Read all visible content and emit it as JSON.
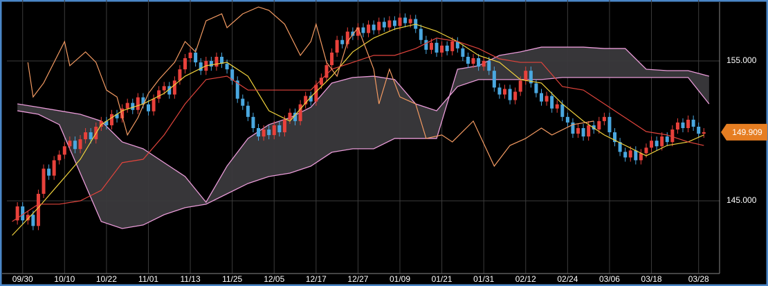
{
  "chart_data": {
    "type": "candlestick",
    "up_color": "#e8413b",
    "down_color": "#4aa8e0",
    "xlim": [
      -2,
      134
    ],
    "xticks": [
      {
        "value": 1,
        "label": "09/30"
      },
      {
        "value": 9,
        "label": "10/10"
      },
      {
        "value": 17,
        "label": "10/22"
      },
      {
        "value": 25,
        "label": "11/01"
      },
      {
        "value": 33,
        "label": "11/13"
      },
      {
        "value": 41,
        "label": "11/25"
      },
      {
        "value": 49,
        "label": "12/05"
      },
      {
        "value": 57,
        "label": "12/17"
      },
      {
        "value": 65,
        "label": "12/27"
      },
      {
        "value": 73,
        "label": "01/09"
      },
      {
        "value": 81,
        "label": "01/21"
      },
      {
        "value": 89,
        "label": "01/31"
      },
      {
        "value": 97,
        "label": "02/12"
      },
      {
        "value": 105,
        "label": "02/24"
      },
      {
        "value": 113,
        "label": "03/06"
      },
      {
        "value": 121,
        "label": "03/18"
      },
      {
        "value": 130,
        "label": "03/28"
      }
    ],
    "ylim": [
      139.8,
      159.36
    ],
    "yticks": [
      {
        "value": 145,
        "label": "145.000"
      },
      {
        "value": 155,
        "label": "155.000"
      }
    ],
    "grid": true,
    "candles": [
      [
        143.6,
        144.9,
        143.3,
        144.6
      ],
      [
        144.6,
        144.9,
        143.3,
        143.6
      ],
      [
        143.6,
        144.3,
        143.3,
        144.0
      ],
      [
        144.0,
        144.3,
        142.9,
        143.2
      ],
      [
        143.2,
        145.8,
        142.9,
        145.5
      ],
      [
        145.5,
        147.6,
        145.2,
        147.3
      ],
      [
        147.3,
        147.6,
        146.5,
        146.8
      ],
      [
        146.8,
        148.2,
        146.5,
        147.9
      ],
      [
        147.9,
        148.6,
        147.6,
        148.3
      ],
      [
        148.3,
        149.2,
        148.0,
        148.9
      ],
      [
        148.9,
        149.6,
        148.6,
        149.3
      ],
      [
        149.3,
        149.6,
        148.4,
        148.7
      ],
      [
        148.7,
        149.7,
        148.4,
        149.4
      ],
      [
        149.4,
        150.2,
        149.1,
        149.9
      ],
      [
        149.9,
        150.2,
        149.1,
        149.4
      ],
      [
        149.4,
        150.6,
        149.1,
        150.3
      ],
      [
        150.3,
        151.0,
        150.0,
        150.7
      ],
      [
        150.7,
        151.0,
        150.1,
        150.4
      ],
      [
        150.4,
        151.5,
        150.1,
        151.2
      ],
      [
        151.2,
        151.5,
        150.6,
        150.9
      ],
      [
        150.9,
        151.9,
        150.6,
        151.6
      ],
      [
        151.6,
        152.3,
        151.3,
        152.0
      ],
      [
        152.0,
        152.3,
        151.2,
        151.5
      ],
      [
        151.5,
        152.7,
        151.2,
        152.4
      ],
      [
        152.4,
        152.7,
        151.6,
        151.9
      ],
      [
        151.9,
        152.2,
        151.1,
        151.4
      ],
      [
        151.4,
        152.6,
        151.1,
        152.3
      ],
      [
        152.3,
        153.2,
        152.0,
        152.9
      ],
      [
        152.9,
        153.5,
        152.6,
        153.2
      ],
      [
        153.2,
        153.5,
        152.3,
        152.6
      ],
      [
        152.6,
        153.9,
        152.3,
        153.6
      ],
      [
        153.6,
        154.7,
        153.3,
        154.4
      ],
      [
        154.4,
        155.5,
        154.1,
        155.2
      ],
      [
        155.2,
        155.9,
        154.9,
        155.6
      ],
      [
        155.6,
        155.9,
        154.6,
        154.9
      ],
      [
        154.9,
        155.2,
        154.0,
        154.3
      ],
      [
        154.3,
        155.3,
        154.0,
        155.0
      ],
      [
        155.0,
        155.3,
        154.3,
        154.6
      ],
      [
        154.6,
        155.6,
        154.3,
        155.3
      ],
      [
        155.3,
        155.6,
        154.5,
        154.8
      ],
      [
        154.8,
        155.1,
        154.1,
        154.4
      ],
      [
        154.4,
        154.7,
        153.3,
        153.6
      ],
      [
        153.6,
        153.9,
        152.0,
        152.3
      ],
      [
        152.3,
        152.6,
        151.5,
        151.8
      ],
      [
        151.8,
        152.1,
        150.7,
        151.0
      ],
      [
        151.0,
        151.3,
        149.9,
        150.2
      ],
      [
        150.2,
        150.5,
        149.3,
        149.6
      ],
      [
        149.6,
        150.4,
        149.3,
        150.1
      ],
      [
        150.1,
        150.4,
        149.4,
        149.7
      ],
      [
        149.7,
        150.7,
        149.4,
        150.4
      ],
      [
        150.4,
        150.7,
        149.6,
        149.9
      ],
      [
        149.9,
        151.1,
        149.6,
        150.8
      ],
      [
        150.8,
        151.6,
        150.5,
        151.3
      ],
      [
        151.3,
        151.6,
        150.4,
        150.7
      ],
      [
        150.7,
        152.2,
        150.4,
        151.9
      ],
      [
        151.9,
        152.8,
        151.6,
        152.5
      ],
      [
        152.5,
        152.8,
        151.8,
        152.1
      ],
      [
        152.1,
        153.6,
        151.8,
        153.3
      ],
      [
        153.3,
        154.1,
        153.0,
        153.8
      ],
      [
        153.8,
        155.0,
        153.5,
        154.7
      ],
      [
        154.7,
        155.9,
        154.4,
        155.6
      ],
      [
        155.6,
        156.8,
        155.3,
        156.5
      ],
      [
        156.5,
        156.8,
        155.9,
        156.2
      ],
      [
        156.2,
        157.4,
        155.9,
        157.1
      ],
      [
        157.1,
        157.4,
        156.5,
        156.8
      ],
      [
        156.8,
        157.7,
        156.5,
        157.4
      ],
      [
        157.4,
        157.7,
        156.7,
        157.0
      ],
      [
        157.0,
        157.9,
        156.7,
        157.6
      ],
      [
        157.6,
        157.9,
        156.9,
        157.2
      ],
      [
        157.2,
        158.1,
        156.9,
        157.8
      ],
      [
        157.8,
        158.1,
        157.1,
        157.4
      ],
      [
        157.4,
        158.2,
        157.1,
        157.9
      ],
      [
        157.9,
        158.2,
        157.2,
        157.5
      ],
      [
        157.5,
        158.4,
        157.2,
        158.1
      ],
      [
        158.1,
        158.4,
        157.4,
        157.7
      ],
      [
        157.7,
        158.3,
        157.4,
        158.0
      ],
      [
        158.0,
        158.3,
        157.0,
        157.3
      ],
      [
        157.3,
        157.6,
        156.2,
        156.5
      ],
      [
        156.5,
        156.8,
        155.5,
        155.8
      ],
      [
        155.8,
        156.6,
        155.5,
        156.3
      ],
      [
        156.3,
        156.6,
        155.3,
        155.6
      ],
      [
        155.6,
        156.4,
        155.3,
        156.1
      ],
      [
        156.1,
        156.4,
        155.4,
        155.7
      ],
      [
        155.7,
        156.7,
        155.4,
        156.4
      ],
      [
        156.4,
        156.7,
        155.6,
        155.9
      ],
      [
        155.9,
        156.2,
        155.0,
        155.3
      ],
      [
        155.3,
        155.6,
        154.5,
        154.8
      ],
      [
        154.8,
        155.5,
        154.5,
        155.2
      ],
      [
        155.2,
        155.5,
        154.3,
        154.6
      ],
      [
        154.6,
        155.3,
        154.3,
        155.0
      ],
      [
        155.0,
        155.3,
        154.0,
        154.3
      ],
      [
        154.3,
        154.6,
        152.8,
        153.1
      ],
      [
        153.1,
        153.4,
        152.3,
        152.6
      ],
      [
        152.6,
        153.3,
        152.3,
        153.0
      ],
      [
        153.0,
        153.3,
        151.9,
        152.2
      ],
      [
        152.2,
        153.1,
        151.9,
        152.8
      ],
      [
        152.8,
        153.9,
        152.5,
        153.6
      ],
      [
        153.6,
        154.6,
        153.3,
        154.3
      ],
      [
        154.3,
        154.6,
        153.1,
        153.4
      ],
      [
        153.4,
        153.7,
        152.4,
        152.7
      ],
      [
        152.7,
        153.0,
        151.8,
        152.1
      ],
      [
        152.1,
        152.8,
        151.8,
        152.5
      ],
      [
        152.5,
        152.8,
        151.3,
        151.6
      ],
      [
        151.6,
        152.2,
        151.3,
        151.9
      ],
      [
        151.9,
        152.2,
        150.7,
        151.0
      ],
      [
        151.0,
        151.3,
        150.3,
        150.6
      ],
      [
        150.6,
        150.9,
        149.5,
        149.8
      ],
      [
        149.8,
        150.5,
        149.5,
        150.2
      ],
      [
        150.2,
        150.5,
        149.3,
        149.6
      ],
      [
        149.6,
        150.7,
        149.3,
        150.4
      ],
      [
        150.4,
        150.7,
        149.8,
        150.1
      ],
      [
        150.1,
        151.0,
        149.8,
        150.7
      ],
      [
        150.7,
        151.3,
        150.4,
        151.0
      ],
      [
        151.0,
        151.3,
        149.6,
        149.9
      ],
      [
        149.9,
        150.2,
        148.9,
        149.2
      ],
      [
        149.2,
        149.5,
        148.2,
        148.5
      ],
      [
        148.5,
        148.8,
        147.8,
        148.1
      ],
      [
        148.1,
        148.9,
        147.8,
        148.6
      ],
      [
        148.6,
        148.9,
        147.6,
        147.9
      ],
      [
        147.9,
        148.7,
        147.6,
        148.4
      ],
      [
        148.4,
        149.1,
        148.1,
        148.8
      ],
      [
        148.8,
        149.6,
        148.5,
        149.3
      ],
      [
        149.3,
        149.6,
        148.6,
        148.9
      ],
      [
        148.9,
        149.9,
        148.6,
        149.6
      ],
      [
        149.6,
        149.9,
        148.9,
        149.2
      ],
      [
        149.2,
        150.4,
        148.9,
        150.1
      ],
      [
        150.1,
        150.9,
        149.8,
        150.6
      ],
      [
        150.6,
        150.9,
        149.9,
        150.2
      ],
      [
        150.2,
        151.1,
        149.9,
        150.8
      ],
      [
        150.8,
        151.1,
        150.0,
        150.3
      ],
      [
        150.3,
        150.6,
        149.5,
        149.8
      ],
      [
        149.8,
        150.2,
        149.5,
        149.909
      ]
    ],
    "cloud": {
      "line_color": "#e99bd8",
      "fill": "#3a393c",
      "x": [
        0,
        4,
        8,
        12,
        16,
        20,
        24,
        28,
        32,
        36,
        40,
        44,
        48,
        52,
        56,
        60,
        64,
        68,
        72,
        76,
        80,
        84,
        88,
        92,
        96,
        100,
        104,
        108,
        112,
        116,
        120,
        124,
        128,
        132
      ],
      "span_a": [
        151.93,
        151.69,
        151.44,
        151.19,
        150.7,
        149.21,
        148.72,
        147.73,
        146.74,
        144.9,
        147.48,
        149.46,
        150.45,
        150.94,
        151.69,
        153.42,
        153.82,
        153.91,
        153.67,
        151.93,
        151.44,
        153.17,
        153.67,
        153.67,
        153.67,
        153.67,
        153.82,
        153.82,
        153.82,
        153.82,
        153.82,
        153.82,
        153.82,
        151.93
      ],
      "span_b": [
        151.44,
        151.19,
        150.45,
        146.98,
        143.52,
        143.02,
        143.27,
        144.01,
        144.51,
        144.76,
        145.5,
        146.24,
        146.74,
        146.98,
        147.48,
        148.47,
        148.72,
        148.72,
        149.46,
        149.46,
        149.46,
        154.41,
        154.66,
        155.4,
        155.65,
        155.99,
        155.99,
        155.99,
        155.89,
        155.89,
        154.41,
        154.31,
        154.31,
        153.91
      ]
    },
    "lines": [
      {
        "color": "#f2d33c",
        "x": [
          -1,
          4,
          8,
          12,
          16,
          20,
          24,
          28,
          32,
          36,
          40,
          44,
          48,
          52,
          56,
          60,
          64,
          68,
          72,
          76,
          80,
          84,
          88,
          92,
          96,
          100,
          104,
          108,
          112,
          116,
          120,
          124,
          128,
          131
        ],
        "values": [
          142.53,
          144.51,
          146.24,
          147.97,
          150.45,
          151.44,
          151.93,
          152.68,
          153.91,
          154.66,
          154.9,
          153.91,
          151.44,
          150.7,
          152.43,
          153.91,
          155.65,
          156.64,
          157.28,
          157.63,
          157.13,
          156.39,
          155.4,
          154.9,
          153.67,
          153.42,
          151.93,
          150.7,
          149.71,
          148.96,
          148.22,
          148.96,
          149.21,
          149.71
        ]
      },
      {
        "color": "#e0443c",
        "x": [
          -1,
          4,
          8,
          12,
          16,
          20,
          24,
          28,
          32,
          36,
          40,
          44,
          48,
          52,
          56,
          60,
          64,
          68,
          72,
          76,
          80,
          84,
          88,
          92,
          96,
          100,
          104,
          108,
          112,
          116,
          120,
          124,
          128,
          131
        ],
        "values": [
          143.52,
          144.76,
          144.76,
          145.0,
          145.75,
          147.73,
          147.97,
          149.71,
          151.93,
          153.67,
          153.91,
          152.92,
          152.92,
          152.92,
          152.92,
          154.41,
          154.9,
          155.4,
          155.4,
          155.89,
          156.64,
          156.39,
          155.89,
          155.15,
          154.9,
          154.9,
          153.17,
          152.92,
          151.93,
          150.94,
          149.95,
          149.71,
          149.21,
          148.96
        ]
      },
      {
        "color": "#f39a62",
        "x": [
          2,
          3,
          5,
          9,
          10,
          13,
          15,
          17,
          19,
          21,
          23,
          25,
          27,
          30,
          32,
          34,
          36,
          39,
          40,
          43,
          46,
          48,
          51,
          54,
          56,
          57,
          59,
          61,
          63,
          65,
          68,
          69,
          71,
          73,
          76,
          78,
          81,
          83,
          87,
          91,
          94,
          97,
          100,
          102,
          106,
          110
        ],
        "values": [
          154.9,
          152.43,
          153.42,
          156.39,
          154.66,
          155.65,
          154.9,
          152.92,
          152.43,
          149.71,
          150.94,
          152.68,
          153.67,
          154.9,
          156.39,
          155.65,
          157.87,
          158.37,
          157.38,
          158.37,
          158.86,
          158.62,
          157.63,
          155.4,
          156.39,
          157.63,
          154.9,
          153.91,
          156.39,
          157.38,
          154.41,
          151.93,
          154.41,
          152.43,
          151.93,
          149.46,
          149.71,
          149.21,
          150.7,
          147.48,
          148.96,
          149.46,
          150.2,
          149.71,
          150.45,
          150.7
        ]
      }
    ],
    "last_price": 149.909,
    "last_price_color": "#e67e22"
  }
}
